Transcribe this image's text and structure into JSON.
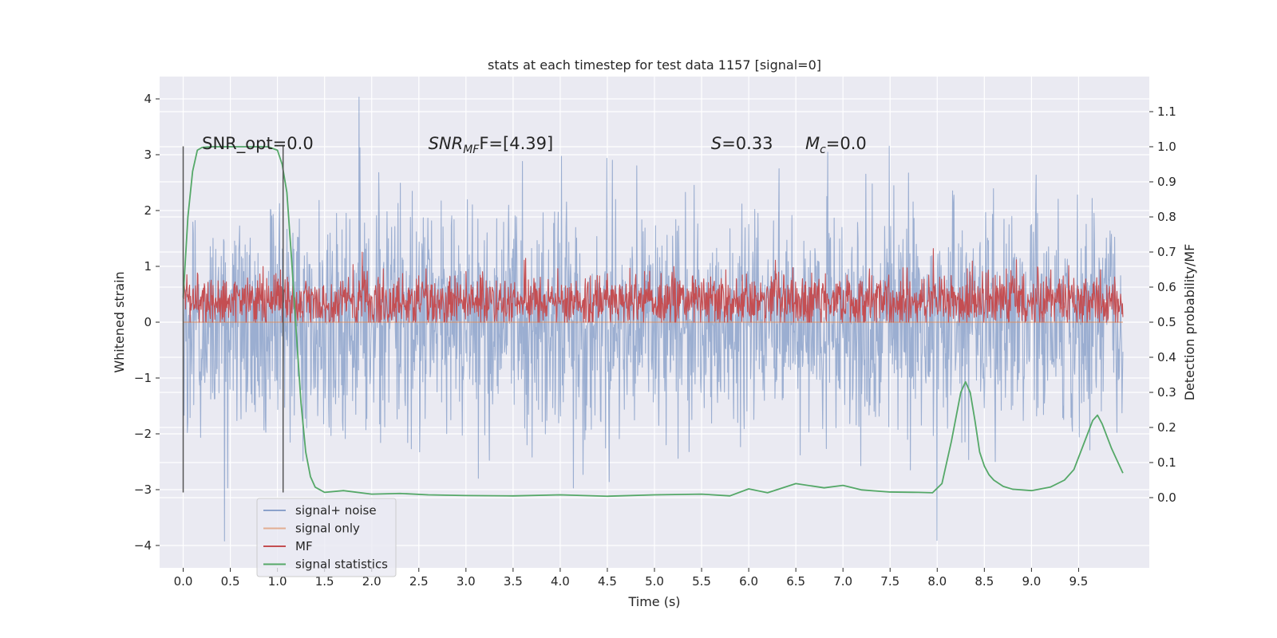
{
  "chart_data": {
    "type": "line",
    "title": "stats at each timestep for test data 1157 [signal=0]",
    "xlabel": "Time (s)",
    "ylabel": "Whitened strain",
    "ylabel_right": "Detection probability/MF",
    "xlim": [
      -0.25,
      10.25
    ],
    "ylim": [
      -4.4,
      4.4
    ],
    "ylim_right": [
      -0.2,
      1.2
    ],
    "x_ticks": [
      0.0,
      0.5,
      1.0,
      1.5,
      2.0,
      2.5,
      3.0,
      3.5,
      4.0,
      4.5,
      5.0,
      5.5,
      6.0,
      6.5,
      7.0,
      7.5,
      8.0,
      8.5,
      9.0,
      9.5
    ],
    "x_tick_labels": [
      "0.0",
      "0.5",
      "1.0",
      "1.5",
      "2.0",
      "2.5",
      "3.0",
      "3.5",
      "4.0",
      "4.5",
      "5.0",
      "5.5",
      "6.0",
      "6.5",
      "7.0",
      "7.5",
      "8.0",
      "8.5",
      "9.0",
      "9.5"
    ],
    "y_ticks": [
      -4,
      -3,
      -2,
      -1,
      0,
      1,
      2,
      3,
      4
    ],
    "y_tick_labels": [
      "−4",
      "−3",
      "−2",
      "−1",
      "0",
      "1",
      "2",
      "3",
      "4"
    ],
    "y_right_ticks": [
      0.0,
      0.1,
      0.2,
      0.3,
      0.4,
      0.5,
      0.6,
      0.7,
      0.8,
      0.9,
      1.0,
      1.1
    ],
    "y_right_tick_labels": [
      "0.0",
      "0.1",
      "0.2",
      "0.3",
      "0.4",
      "0.5",
      "0.6",
      "0.7",
      "0.8",
      "0.9",
      "1.0",
      "1.1"
    ],
    "grid": true,
    "legend_position": "lower-left",
    "annotations": [
      {
        "text": "SNR_opt=0.0",
        "x": 0.2,
        "y": 3.1
      },
      {
        "text": "SNR",
        "sub": "MF",
        "after": "F=[4.39]",
        "italic_head": true,
        "x": 2.6,
        "y": 3.1
      },
      {
        "text": "S",
        "after": "=0.33",
        "italic_head": true,
        "x": 5.6,
        "y": 3.1
      },
      {
        "text": "M",
        "sub": "c",
        "after": "=0.0",
        "italic_head": true,
        "x": 6.6,
        "y": 3.1
      }
    ],
    "vertical_lines": [
      0.0,
      1.06
    ],
    "vertical_line_range": [
      -3.05,
      3.15
    ],
    "series": [
      {
        "name": "signal+ noise",
        "axis": "left",
        "color": "#4c72b0",
        "opacity": 0.5,
        "noise": {
          "x_start": 0.0,
          "x_end": 9.97,
          "samples": 2048,
          "core_amplitude": 1.0,
          "max": 4.03,
          "min": -3.92,
          "seed": 1157
        }
      },
      {
        "name": "signal only",
        "axis": "left",
        "color": "#dd8452",
        "opacity": 0.5,
        "x": [
          0.0,
          9.97
        ],
        "y": [
          0.0,
          0.0
        ]
      },
      {
        "name": "MF",
        "axis": "right",
        "color": "#c44e52",
        "noise": {
          "x_start": 0.0,
          "x_end": 9.97,
          "samples": 2048,
          "center": 0.56,
          "amplitude": 0.04,
          "max": 0.71,
          "min": 0.5,
          "seed": 42
        }
      },
      {
        "name": "signal statistics",
        "axis": "right",
        "color": "#55a868",
        "x": [
          0.0,
          0.05,
          0.1,
          0.15,
          0.2,
          0.3,
          0.5,
          0.7,
          0.9,
          1.0,
          1.05,
          1.1,
          1.15,
          1.2,
          1.25,
          1.3,
          1.35,
          1.4,
          1.5,
          1.7,
          2.0,
          2.3,
          2.6,
          3.0,
          3.5,
          4.0,
          4.5,
          5.0,
          5.5,
          5.8,
          6.0,
          6.2,
          6.5,
          6.8,
          7.0,
          7.2,
          7.5,
          7.8,
          7.95,
          8.05,
          8.15,
          8.25,
          8.3,
          8.35,
          8.4,
          8.45,
          8.5,
          8.55,
          8.6,
          8.7,
          8.8,
          9.0,
          9.2,
          9.35,
          9.45,
          9.55,
          9.65,
          9.7,
          9.75,
          9.85,
          9.97
        ],
        "y": [
          0.57,
          0.8,
          0.93,
          0.99,
          0.998,
          1.0,
          1.0,
          1.0,
          1.0,
          0.99,
          0.95,
          0.87,
          0.68,
          0.47,
          0.27,
          0.13,
          0.06,
          0.03,
          0.015,
          0.02,
          0.01,
          0.012,
          0.008,
          0.006,
          0.005,
          0.008,
          0.004,
          0.008,
          0.01,
          0.005,
          0.025,
          0.014,
          0.04,
          0.028,
          0.035,
          0.022,
          0.016,
          0.015,
          0.014,
          0.04,
          0.16,
          0.3,
          0.33,
          0.3,
          0.22,
          0.13,
          0.09,
          0.065,
          0.05,
          0.032,
          0.024,
          0.02,
          0.03,
          0.05,
          0.08,
          0.15,
          0.22,
          0.235,
          0.21,
          0.14,
          0.07
        ]
      }
    ]
  }
}
